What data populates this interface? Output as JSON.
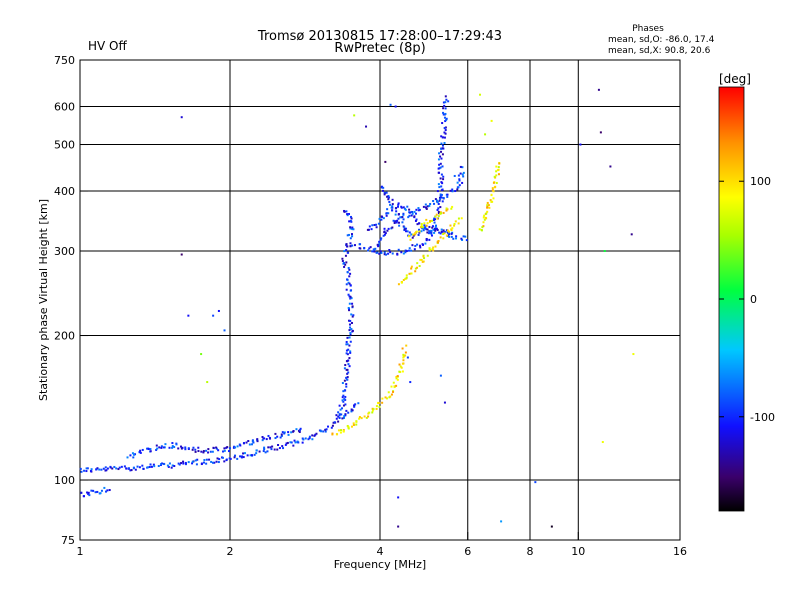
{
  "title": {
    "line1": "Tromsø 20130815 17:28:00–17:29:43",
    "line2": "RwPretec (8p)"
  },
  "status": {
    "hv": "HV Off",
    "hv_color": "#cc0000"
  },
  "stats": {
    "header": "Phases",
    "o_line": "mean, sd,O: -86.0, 17.4",
    "x_line": "mean, sd,X:  90.8, 20.6"
  },
  "colorbar": {
    "unit_label": "[deg]",
    "ticks": [
      "100",
      "0",
      "-100"
    ],
    "min": -180,
    "max": 180
  },
  "chart_data": {
    "type": "scatter",
    "xlabel": "Frequency [MHz]",
    "ylabel": "Stationary phase Virtual Height [km]",
    "xscale": "log",
    "yscale": "log",
    "xlim": [
      1,
      16
    ],
    "ylim": [
      75,
      750
    ],
    "x_ticks": [
      1,
      2,
      4,
      6,
      8,
      10,
      16
    ],
    "y_ticks": [
      75,
      100,
      200,
      300,
      400,
      500,
      600,
      750
    ],
    "x_tick_labels": [
      "1",
      "2",
      "4",
      "6",
      "8",
      "10",
      "16"
    ],
    "y_tick_labels": [
      "75",
      "100",
      "200",
      "300",
      "400",
      "500",
      "600",
      "750"
    ],
    "x_grid": [
      2,
      4,
      6,
      8,
      10
    ],
    "y_grid": [
      100,
      200,
      300,
      400,
      500,
      600
    ],
    "series": [
      {
        "traces": [
          [
            [
              1.0,
              105
            ],
            [
              1.1,
              105
            ],
            [
              1.2,
              106
            ],
            [
              1.3,
              106
            ],
            [
              1.4,
              107
            ],
            [
              1.5,
              107
            ],
            [
              1.6,
              108
            ],
            [
              1.7,
              109
            ],
            [
              1.8,
              109
            ],
            [
              1.9,
              110
            ],
            [
              2.0,
              111
            ],
            [
              2.2,
              113
            ],
            [
              2.4,
              116
            ],
            [
              2.6,
              118
            ],
            [
              2.8,
              121
            ],
            [
              3.0,
              125
            ],
            [
              3.2,
              130
            ],
            [
              3.35,
              135
            ],
            [
              3.5,
              140
            ],
            [
              3.6,
              146
            ]
          ],
          [
            [
              1.0,
              93
            ],
            [
              1.05,
              94
            ],
            [
              1.1,
              95
            ],
            [
              1.15,
              96
            ]
          ],
          [
            [
              1.25,
              112
            ],
            [
              1.35,
              115
            ],
            [
              1.45,
              117
            ],
            [
              1.55,
              118
            ],
            [
              1.65,
              116
            ],
            [
              1.8,
              115
            ],
            [
              2.0,
              116
            ],
            [
              2.2,
              120
            ],
            [
              2.5,
              124
            ],
            [
              2.8,
              128
            ]
          ],
          [
            [
              3.3,
              135
            ],
            [
              3.4,
              148
            ],
            [
              3.4,
              160
            ],
            [
              3.45,
              175
            ],
            [
              3.45,
              190
            ],
            [
              3.5,
              205
            ],
            [
              3.5,
              220
            ],
            [
              3.5,
              240
            ],
            [
              3.45,
              255
            ],
            [
              3.45,
              270
            ],
            [
              3.4,
              290
            ],
            [
              3.45,
              310
            ],
            [
              3.5,
              330
            ],
            [
              3.5,
              350
            ],
            [
              3.4,
              370
            ]
          ],
          [
            [
              3.5,
              310
            ],
            [
              3.7,
              305
            ],
            [
              3.9,
              300
            ],
            [
              4.1,
              298
            ],
            [
              4.3,
              298
            ],
            [
              4.5,
              300
            ],
            [
              4.7,
              305
            ],
            [
              4.9,
              310
            ],
            [
              5.0,
              318
            ],
            [
              5.1,
              330
            ],
            [
              5.2,
              350
            ],
            [
              5.25,
              380
            ],
            [
              5.3,
              420
            ],
            [
              5.3,
              470
            ],
            [
              5.35,
              520
            ],
            [
              5.4,
              580
            ],
            [
              5.45,
              630
            ]
          ],
          [
            [
              3.8,
              330
            ],
            [
              4.0,
              350
            ],
            [
              4.2,
              365
            ],
            [
              4.4,
              375
            ],
            [
              4.6,
              360
            ],
            [
              4.8,
              340
            ],
            [
              5.0,
              330
            ],
            [
              5.3,
              330
            ],
            [
              5.6,
              328
            ]
          ],
          [
            [
              4.0,
              410
            ],
            [
              4.2,
              380
            ],
            [
              4.4,
              345
            ],
            [
              4.6,
              320
            ],
            [
              4.9,
              335
            ],
            [
              5.3,
              330
            ],
            [
              5.7,
              320
            ],
            [
              6.0,
              318
            ]
          ],
          [
            [
              3.9,
              300
            ],
            [
              4.1,
              330
            ],
            [
              4.3,
              345
            ],
            [
              4.5,
              355
            ],
            [
              4.7,
              362
            ],
            [
              4.9,
              370
            ],
            [
              5.1,
              378
            ],
            [
              5.3,
              385
            ],
            [
              5.5,
              395
            ],
            [
              5.7,
              405
            ],
            [
              5.8,
              420
            ],
            [
              5.85,
              450
            ]
          ]
        ],
        "phase": -100
      },
      {
        "traces": [
          [
            [
              3.2,
              125
            ],
            [
              3.4,
              128
            ],
            [
              3.6,
              132
            ],
            [
              3.8,
              138
            ],
            [
              4.0,
              145
            ],
            [
              4.2,
              152
            ],
            [
              4.3,
              160
            ],
            [
              4.4,
              170
            ],
            [
              4.45,
              180
            ],
            [
              4.5,
              190
            ]
          ],
          [
            [
              4.4,
              255
            ],
            [
              4.6,
              270
            ],
            [
              4.8,
              285
            ],
            [
              5.0,
              300
            ],
            [
              5.2,
              312
            ],
            [
              5.4,
              325
            ],
            [
              5.6,
              338
            ],
            [
              5.8,
              350
            ]
          ],
          [
            [
              6.4,
              330
            ],
            [
              6.5,
              350
            ],
            [
              6.6,
              370
            ],
            [
              6.7,
              390
            ],
            [
              6.8,
              410
            ],
            [
              6.85,
              430
            ],
            [
              6.9,
              460
            ]
          ],
          [
            [
              4.6,
              320
            ],
            [
              4.8,
              335
            ],
            [
              5.0,
              345
            ],
            [
              5.2,
              355
            ],
            [
              5.4,
              362
            ],
            [
              5.6,
              370
            ]
          ]
        ],
        "phase": 95
      }
    ],
    "isolated_points": [
      [
        1.6,
        570,
        -120
      ],
      [
        1.6,
        295,
        -150
      ],
      [
        1.65,
        220,
        -110
      ],
      [
        1.75,
        183,
        40
      ],
      [
        1.8,
        160,
        60
      ],
      [
        1.85,
        220,
        -90
      ],
      [
        1.9,
        225,
        -110
      ],
      [
        1.95,
        205,
        -80
      ],
      [
        3.55,
        575,
        60
      ],
      [
        3.75,
        545,
        -130
      ],
      [
        4.1,
        460,
        -150
      ],
      [
        4.2,
        605,
        -80
      ],
      [
        4.3,
        600,
        -110
      ],
      [
        4.55,
        180,
        -90
      ],
      [
        4.6,
        160,
        -100
      ],
      [
        4.35,
        92,
        -110
      ],
      [
        4.35,
        80,
        -140
      ],
      [
        5.3,
        165,
        -80
      ],
      [
        5.4,
        145,
        -120
      ],
      [
        5.65,
        430,
        -80
      ],
      [
        6.35,
        635,
        70
      ],
      [
        6.5,
        525,
        60
      ],
      [
        7.0,
        82,
        -60
      ],
      [
        8.2,
        99,
        -90
      ],
      [
        8.85,
        80,
        -170
      ],
      [
        10.1,
        500,
        -110
      ],
      [
        11.0,
        650,
        -140
      ],
      [
        11.1,
        530,
        -150
      ],
      [
        11.3,
        300,
        10
      ],
      [
        11.6,
        450,
        -140
      ],
      [
        12.8,
        325,
        -140
      ],
      [
        12.9,
        183,
        80
      ],
      [
        11.2,
        120,
        80
      ],
      [
        6.7,
        560,
        80
      ]
    ]
  }
}
